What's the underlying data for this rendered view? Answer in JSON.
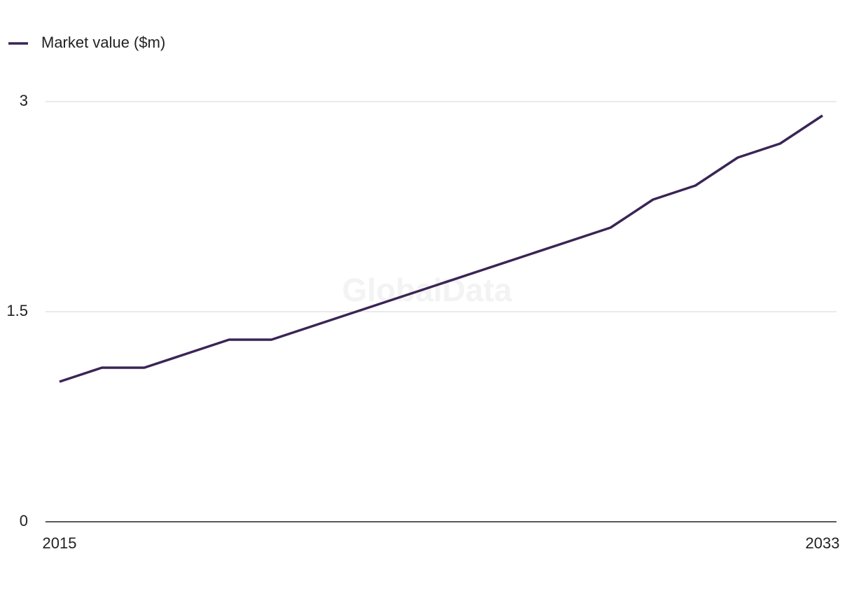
{
  "chart_data": {
    "type": "line",
    "watermark": "GlobalData",
    "x": [
      2015,
      2016,
      2017,
      2018,
      2019,
      2020,
      2021,
      2022,
      2023,
      2024,
      2025,
      2026,
      2027,
      2028,
      2029,
      2030,
      2031,
      2032,
      2033
    ],
    "series": [
      {
        "name": "Market value ($m)",
        "color": "#3a2556",
        "values": [
          1.0,
          1.1,
          1.1,
          1.2,
          1.3,
          1.3,
          1.4,
          1.5,
          1.6,
          1.7,
          1.8,
          1.9,
          2.0,
          2.1,
          2.3,
          2.4,
          2.6,
          2.7,
          2.9
        ]
      }
    ],
    "xlim": [
      2015,
      2033
    ],
    "xticks": [
      2015,
      2033
    ],
    "ylim": [
      0,
      3
    ],
    "yticks": [
      0,
      1.5,
      3
    ],
    "grid": true,
    "legend": "top-left"
  }
}
